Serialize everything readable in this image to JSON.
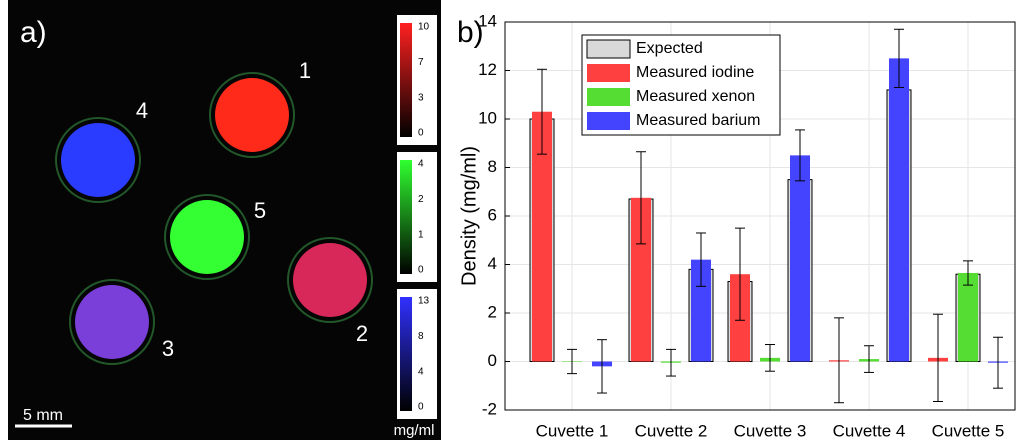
{
  "image_panel": {
    "panel_label": "a)",
    "cuvettes": [
      {
        "label": "1",
        "color": "#ff2a1a"
      },
      {
        "label": "2",
        "color": "#d8285a"
      },
      {
        "label": "3",
        "color": "#7a3fd8"
      },
      {
        "label": "4",
        "color": "#2a3cff"
      },
      {
        "label": "5",
        "color": "#33ff33"
      }
    ],
    "colorbars": [
      {
        "color": "#ff2020",
        "ticks": [
          10,
          7,
          3,
          0
        ]
      },
      {
        "color": "#30ff30",
        "ticks": [
          4,
          2,
          1,
          0
        ]
      },
      {
        "color": "#3030ff",
        "ticks": [
          13,
          8,
          4,
          0
        ]
      }
    ],
    "unit": "mg/ml",
    "scale_bar": "5 mm"
  },
  "chart_data": {
    "type": "bar",
    "panel_label": "b)",
    "ylabel": "Density (mg/ml)",
    "categories": [
      "Cuvette 1",
      "Cuvette 2",
      "Cuvette 3",
      "Cuvette 4",
      "Cuvette 5"
    ],
    "ylim": [
      -2,
      14
    ],
    "yticks": [
      -2,
      0,
      2,
      4,
      6,
      8,
      10,
      12,
      14
    ],
    "grid": true,
    "legend": "upper left",
    "expected_name": "Expected",
    "expected_color": "#d9d9d9",
    "series": [
      {
        "name": "Measured iodine",
        "color": "#ff4040",
        "values": [
          10.3,
          6.75,
          3.6,
          0.05,
          0.15
        ],
        "errors": [
          1.75,
          1.9,
          1.9,
          1.75,
          1.8
        ],
        "expected": [
          10,
          6.7,
          3.3,
          0,
          0
        ]
      },
      {
        "name": "Measured xenon",
        "color": "#55dd33",
        "values": [
          0.0,
          -0.05,
          0.15,
          0.1,
          3.65
        ],
        "errors": [
          0.5,
          0.55,
          0.55,
          0.55,
          0.5
        ],
        "expected": [
          0,
          0,
          0,
          0,
          3.6
        ]
      },
      {
        "name": "Measured barium",
        "color": "#4444ff",
        "values": [
          -0.2,
          4.2,
          8.5,
          12.5,
          -0.05
        ],
        "errors": [
          1.1,
          1.1,
          1.05,
          1.2,
          1.05
        ],
        "expected": [
          0,
          3.8,
          7.5,
          11.2,
          0
        ]
      }
    ]
  }
}
